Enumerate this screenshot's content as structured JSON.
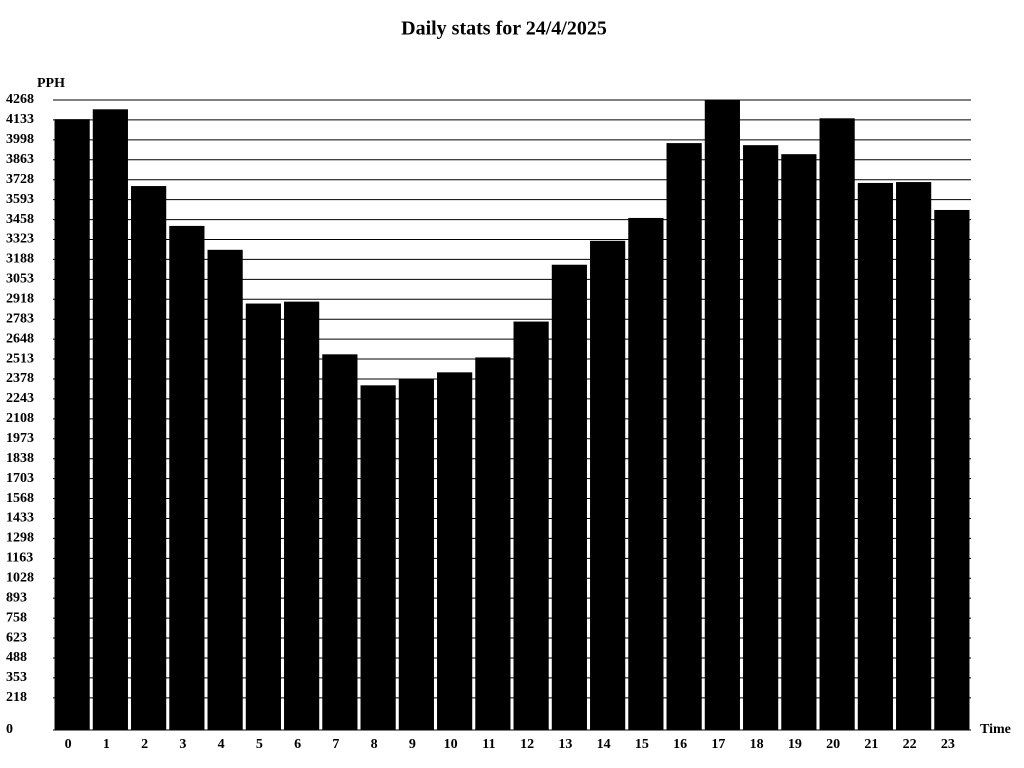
{
  "chart_data": {
    "type": "bar",
    "title": "Daily stats for 24/4/2025",
    "y_label": "PPH",
    "x_label": "Time",
    "categories": [
      "0",
      "1",
      "2",
      "3",
      "4",
      "5",
      "6",
      "7",
      "8",
      "9",
      "10",
      "11",
      "12",
      "13",
      "14",
      "15",
      "16",
      "17",
      "18",
      "19",
      "20",
      "21",
      "22",
      "23"
    ],
    "values": [
      4138,
      4205,
      3685,
      3415,
      3253,
      2889,
      2902,
      2545,
      2335,
      2376,
      2423,
      2524,
      2767,
      3152,
      3314,
      3469,
      3976,
      4268,
      3962,
      3901,
      4144,
      3706,
      3712,
      3523
    ],
    "color": "#000000",
    "ylim": [
      0,
      4268
    ],
    "yticks": [
      0,
      218,
      353,
      488,
      623,
      758,
      893,
      1028,
      1163,
      1298,
      1433,
      1568,
      1703,
      1838,
      1973,
      2108,
      2243,
      2378,
      2513,
      2648,
      2783,
      2918,
      3053,
      3188,
      3323,
      3458,
      3593,
      3728,
      3863,
      3998,
      4133,
      4268
    ],
    "grid": true
  }
}
